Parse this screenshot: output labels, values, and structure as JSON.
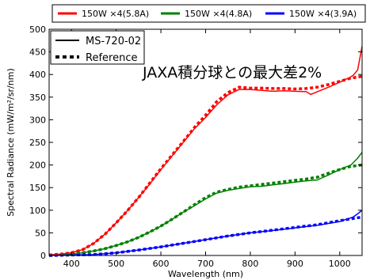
{
  "chart_data": {
    "type": "line",
    "xlabel": "Wavelength (nm)",
    "ylabel": "Spectral Radiance (mW/m²/sr/nm)",
    "xlim": [
      350,
      1050
    ],
    "ylim": [
      0,
      500
    ],
    "xticks": [
      400,
      500,
      600,
      700,
      800,
      900,
      1000
    ],
    "yticks": [
      0,
      50,
      100,
      150,
      200,
      250,
      300,
      350,
      400,
      450,
      500
    ],
    "grid": false,
    "annotation": "JAXA積分球との最大差2%",
    "top_legend": {
      "placement": "above-plot",
      "entries": [
        {
          "label": "150W ×4(5.8A)",
          "color": "#ff0000"
        },
        {
          "label": "150W ×4(4.8A)",
          "color": "#008000"
        },
        {
          "label": "150W ×4(3.9A)",
          "color": "#0000ff"
        }
      ]
    },
    "style_legend": {
      "placement": "top-left",
      "entries": [
        {
          "label": "MS-720-02",
          "style": "solid"
        },
        {
          "label": "Reference",
          "style": "dashed"
        }
      ]
    },
    "series": [
      {
        "legend": "150W ×4(5.8A)",
        "instrument": "MS-720-02",
        "color": "#ff0000",
        "style": "solid",
        "x": [
          350,
          375,
          400,
          425,
          450,
          475,
          500,
          525,
          550,
          575,
          600,
          625,
          650,
          675,
          700,
          725,
          750,
          775,
          800,
          825,
          850,
          875,
          900,
          925,
          935,
          950,
          975,
          1000,
          1010,
          1020,
          1030,
          1040,
          1050
        ],
        "y": [
          1,
          3,
          6,
          13,
          27,
          47,
          72,
          99,
          128,
          158,
          190,
          220,
          250,
          280,
          305,
          333,
          355,
          367,
          367,
          365,
          363,
          364,
          363,
          362,
          356,
          362,
          372,
          383,
          388,
          392,
          398,
          410,
          462
        ]
      },
      {
        "legend": "150W ×4(5.8A)",
        "instrument": "Reference",
        "color": "#ff0000",
        "style": "dashed",
        "x": [
          350,
          375,
          400,
          425,
          450,
          475,
          500,
          525,
          550,
          575,
          600,
          625,
          650,
          675,
          700,
          725,
          750,
          775,
          800,
          825,
          850,
          875,
          900,
          925,
          950,
          975,
          1000,
          1025,
          1050
        ],
        "y": [
          1,
          3,
          6,
          13,
          27,
          47,
          72,
          99,
          128,
          160,
          192,
          222,
          252,
          283,
          310,
          340,
          360,
          372,
          370,
          370,
          369,
          369,
          368,
          369,
          372,
          378,
          385,
          392,
          396
        ]
      },
      {
        "legend": "150W ×4(4.8A)",
        "instrument": "MS-720-02",
        "color": "#008000",
        "style": "solid",
        "x": [
          350,
          375,
          400,
          425,
          450,
          475,
          500,
          525,
          550,
          575,
          600,
          625,
          650,
          675,
          700,
          725,
          750,
          775,
          800,
          825,
          850,
          875,
          900,
          925,
          950,
          975,
          1000,
          1025,
          1040,
          1050
        ],
        "y": [
          0,
          1,
          3,
          6,
          10,
          15,
          22,
          30,
          40,
          52,
          65,
          80,
          96,
          110,
          125,
          138,
          144,
          148,
          152,
          153,
          156,
          159,
          162,
          165,
          167,
          178,
          190,
          200,
          215,
          228
        ]
      },
      {
        "legend": "150W ×4(4.8A)",
        "instrument": "Reference",
        "color": "#008000",
        "style": "dashed",
        "x": [
          350,
          375,
          400,
          425,
          450,
          475,
          500,
          525,
          550,
          575,
          600,
          625,
          650,
          675,
          700,
          725,
          750,
          775,
          800,
          825,
          850,
          875,
          900,
          925,
          950,
          975,
          1000,
          1025,
          1050
        ],
        "y": [
          0,
          1,
          3,
          6,
          10,
          15,
          22,
          30,
          40,
          52,
          65,
          80,
          96,
          112,
          128,
          140,
          146,
          151,
          154,
          157,
          160,
          163,
          166,
          169,
          173,
          182,
          190,
          197,
          200
        ]
      },
      {
        "legend": "150W ×4(3.9A)",
        "instrument": "MS-720-02",
        "color": "#0000ff",
        "style": "solid",
        "x": [
          350,
          400,
          450,
          500,
          550,
          600,
          650,
          700,
          750,
          800,
          850,
          900,
          950,
          1000,
          1030,
          1040,
          1050
        ],
        "y": [
          0,
          1,
          2,
          6,
          12,
          19,
          27,
          35,
          43,
          50,
          55,
          61,
          67,
          75,
          85,
          92,
          100
        ]
      },
      {
        "legend": "150W ×4(3.9A)",
        "instrument": "Reference",
        "color": "#0000ff",
        "style": "dashed",
        "x": [
          350,
          400,
          450,
          500,
          550,
          600,
          650,
          700,
          750,
          800,
          850,
          900,
          950,
          1000,
          1050
        ],
        "y": [
          0,
          1,
          2,
          6,
          12,
          19,
          27,
          35,
          43,
          50,
          56,
          62,
          68,
          77,
          85
        ]
      }
    ]
  }
}
